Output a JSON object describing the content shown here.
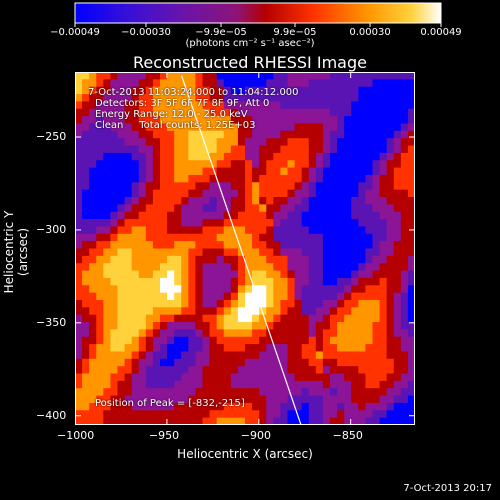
{
  "chart_data": {
    "type": "heatmap",
    "title": "Reconstructed RHESSI Image",
    "xlabel": "Heliocentric X (arcsec)",
    "ylabel": "Heliocentric Y (arcsec)",
    "xlim": [
      -1000,
      -815
    ],
    "ylim": [
      -405,
      -215
    ],
    "x_ticks": [
      -1000,
      -950,
      -900,
      -850
    ],
    "x_tick_labels": [
      "−1000",
      "−950",
      "−900",
      "−850"
    ],
    "y_ticks": [
      -250,
      -300,
      -350,
      -400
    ],
    "y_tick_labels": [
      "−250",
      "−300",
      "−350",
      "−400"
    ],
    "colorbar": {
      "ticks": [
        -0.00049,
        -0.0003,
        -9.9e-05,
        9.9e-05,
        0.0003,
        0.00049
      ],
      "tick_labels": [
        "−0.00049",
        "−0.00030",
        "−9.9e−05",
        "9.9e−05",
        "0.00030",
        "0.00049"
      ],
      "units": "(photons cm⁻² s⁻¹ asec⁻²)",
      "colormap": [
        "#0000ff",
        "#5a14b4",
        "#8c1496",
        "#b40000",
        "#ff3200",
        "#ff9600",
        "#ffd23c",
        "#ffffff"
      ]
    },
    "annotations": {
      "time_range": "7-Oct-2013 11:03:24.000 to 11:04:12.000",
      "detectors": "Detectors: 3F 5F 6F 7F 8F 9F, Att 0",
      "energy": "Energy Range: 12.0 - 25.0 keV",
      "algorithm": "Clean     Total counts: 1.25E+03",
      "peak": "Position of Peak = [-832,-215]"
    },
    "limb": [
      [
        -942,
        -217
      ],
      [
        -877,
        -405
      ]
    ],
    "grid": false,
    "grid_cells": 48
  },
  "footer_date": "7-Oct-2013 20:17"
}
